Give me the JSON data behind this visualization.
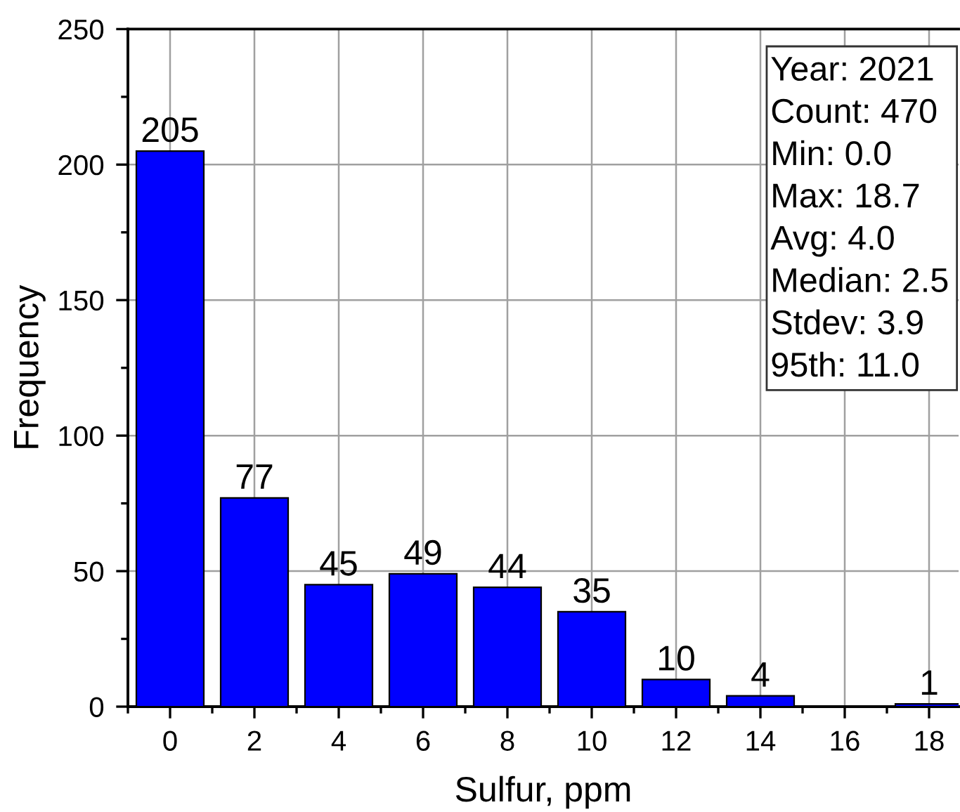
{
  "chart_data": {
    "type": "bar",
    "x": [
      0,
      2,
      4,
      6,
      8,
      10,
      12,
      14,
      16,
      18
    ],
    "values": [
      205,
      77,
      45,
      49,
      44,
      35,
      10,
      4,
      0,
      1
    ],
    "value_labels": [
      "205",
      "77",
      "45",
      "49",
      "44",
      "35",
      "10",
      "4",
      null,
      "1"
    ],
    "color": "#0000ff",
    "xlabel": "Sulfur, ppm",
    "ylabel": "Frequency",
    "xlim": [
      -1,
      18.7
    ],
    "xticks": [
      0,
      2,
      4,
      6,
      8,
      10,
      12,
      14,
      16,
      18
    ],
    "ylim": [
      0,
      250
    ],
    "yticks": [
      0,
      50,
      100,
      150,
      200,
      250
    ],
    "grid": true,
    "annotations": [
      "Year: 2021",
      "Count: 470",
      "Min: 0.0",
      "Max: 18.7",
      "Avg: 4.0",
      "Median: 2.5",
      "Stdev: 3.9",
      "95th: 11.0"
    ]
  }
}
